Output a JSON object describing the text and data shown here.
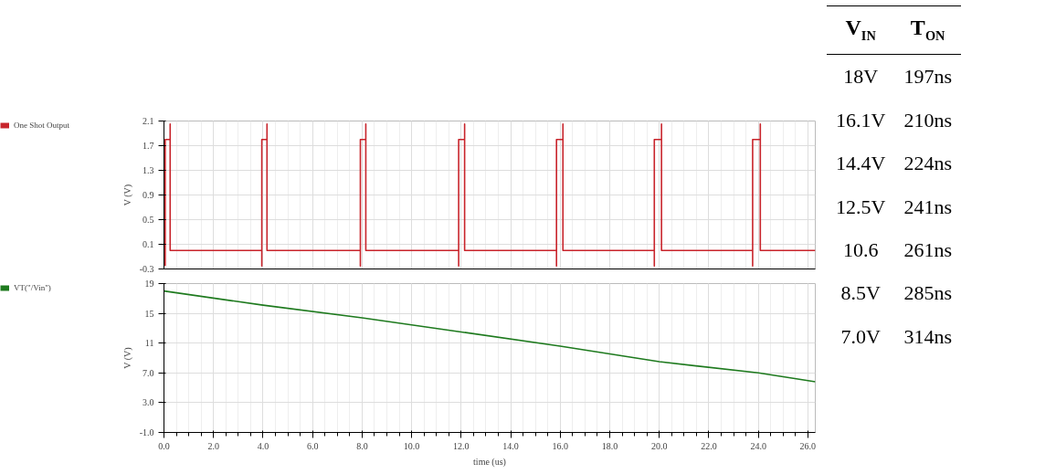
{
  "chart_data": [
    {
      "type": "line",
      "ylabel": "V (V)",
      "legend": "left",
      "grid": true,
      "tick_labels": "y",
      "xlim": [
        0,
        26.3
      ],
      "ylim": [
        -0.3,
        2.1
      ],
      "xticks": [
        {
          "value": 0,
          "label": null
        },
        {
          "value": 2,
          "label": null
        },
        {
          "value": 4,
          "label": null
        },
        {
          "value": 6,
          "label": null
        },
        {
          "value": 8,
          "label": null
        },
        {
          "value": 10,
          "label": null
        },
        {
          "value": 12,
          "label": null
        },
        {
          "value": 14,
          "label": null
        },
        {
          "value": 16,
          "label": null
        },
        {
          "value": 18,
          "label": null
        },
        {
          "value": 20,
          "label": null
        },
        {
          "value": 22,
          "label": null
        },
        {
          "value": 24,
          "label": null
        },
        {
          "value": 26,
          "label": null
        }
      ],
      "yticks": [
        -0.3,
        0.1,
        0.5,
        0.9,
        1.3,
        1.7,
        2.1
      ],
      "series": [
        {
          "name": "One Shot Output",
          "color": "#c8242b",
          "x": [
            0.05,
            0.05,
            0.25,
            0.25,
            0.25,
            3.95,
            3.95,
            3.95,
            4.16,
            4.16,
            4.16,
            7.93,
            7.93,
            7.93,
            8.15,
            8.15,
            8.15,
            11.9,
            11.9,
            11.9,
            12.14,
            12.14,
            12.14,
            15.85,
            15.85,
            15.85,
            16.11,
            16.11,
            16.11,
            19.8,
            19.8,
            19.8,
            20.09,
            20.09,
            20.09,
            23.77,
            23.77,
            23.77,
            24.08,
            24.08,
            24.08,
            26.3
          ],
          "values": [
            -0.25,
            1.8,
            1.8,
            2.05,
            0.0,
            0.0,
            -0.25,
            1.8,
            1.8,
            2.05,
            0.0,
            0.0,
            -0.25,
            1.8,
            1.8,
            2.05,
            0.0,
            0.0,
            -0.25,
            1.8,
            1.8,
            2.05,
            0.0,
            0.0,
            -0.25,
            1.8,
            1.8,
            2.05,
            0.0,
            0.0,
            -0.25,
            1.8,
            1.8,
            2.05,
            0.0,
            0.0,
            -0.25,
            1.8,
            1.8,
            2.05,
            0.0,
            0.0
          ]
        }
      ]
    },
    {
      "type": "line",
      "xlabel": "time (us)",
      "ylabel": "V (V)",
      "legend": "left",
      "grid": true,
      "xlim": [
        0,
        26.3
      ],
      "ylim": [
        -1.0,
        19
      ],
      "xticks": [
        {
          "value": 0,
          "label": "0.0"
        },
        {
          "value": 2,
          "label": "2.0"
        },
        {
          "value": 4,
          "label": "4.0"
        },
        {
          "value": 6,
          "label": "6.0"
        },
        {
          "value": 8,
          "label": "8.0"
        },
        {
          "value": 10,
          "label": "10.0"
        },
        {
          "value": 12,
          "label": "12.0"
        },
        {
          "value": 14,
          "label": "14.0"
        },
        {
          "value": 16,
          "label": "16.0"
        },
        {
          "value": 18,
          "label": "18.0"
        },
        {
          "value": 20,
          "label": "20.0"
        },
        {
          "value": 22,
          "label": "22.0"
        },
        {
          "value": 24,
          "label": "24.0"
        },
        {
          "value": 26,
          "label": "26.0"
        }
      ],
      "yticks": [
        {
          "value": -1.0,
          "label": "-1.0"
        },
        {
          "value": 3.0,
          "label": "3.0"
        },
        {
          "value": 7.0,
          "label": "7.0"
        },
        11,
        15,
        19
      ],
      "series": [
        {
          "name": "VT(\"/Vin\")",
          "color": "#1e7a1e",
          "x": [
            0,
            4,
            8,
            12,
            16,
            20,
            24,
            26.3
          ],
          "values": [
            18.0,
            16.1,
            14.4,
            12.5,
            10.6,
            8.5,
            7.0,
            5.8
          ]
        }
      ]
    },
    {
      "type": "other",
      "categories": [
        "V$_{IN}$",
        "T$_{ON}$"
      ],
      "cell_labels": [
        [
          "18V",
          "197ns"
        ],
        [
          "16.1V",
          "210ns"
        ],
        [
          "14.4V",
          "224ns"
        ],
        [
          "12.5V",
          "241ns"
        ],
        [
          "10.6",
          "261ns"
        ],
        [
          "8.5V",
          "285ns"
        ],
        [
          "7.0V",
          "314ns"
        ]
      ]
    }
  ]
}
